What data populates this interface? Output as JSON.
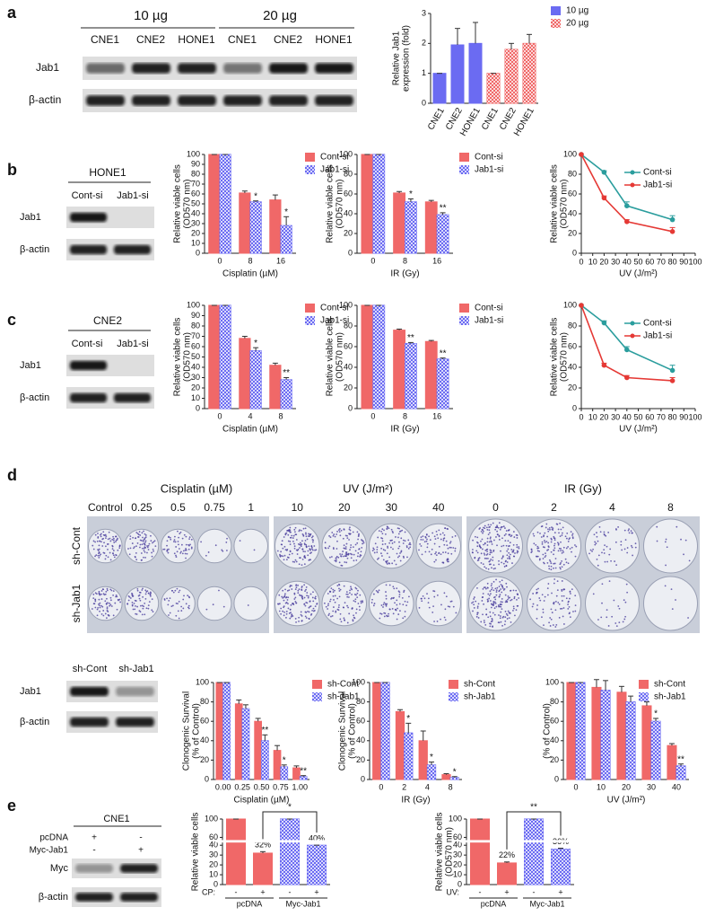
{
  "panel_labels": [
    "a",
    "b",
    "c",
    "d",
    "e"
  ],
  "blot_a": {
    "headers": [
      "10 µg",
      "20 µg"
    ],
    "lanes": [
      "CNE1",
      "CNE2",
      "HONE1",
      "CNE1",
      "CNE2",
      "HONE1"
    ],
    "rows": [
      "Jab1",
      "β-actin"
    ]
  },
  "blot_b": {
    "cell": "HONE1",
    "lanes": [
      "Cont-si",
      "Jab1-si"
    ],
    "rows": [
      "Jab1",
      "β-actin"
    ]
  },
  "blot_c": {
    "cell": "CNE2",
    "lanes": [
      "Cont-si",
      "Jab1-si"
    ],
    "rows": [
      "Jab1",
      "β-actin"
    ]
  },
  "colony": {
    "control": "Control",
    "groups": [
      {
        "name": "Cisplatin (µM)",
        "doses": [
          "0.25",
          "0.5",
          "0.75",
          "1"
        ]
      },
      {
        "name": "UV (J/m²)",
        "doses": [
          "10",
          "20",
          "30",
          "40"
        ]
      },
      {
        "name": "IR (Gy)",
        "doses": [
          "0",
          "2",
          "4",
          "8"
        ]
      }
    ],
    "rows": [
      "sh-Cont",
      "sh-Jab1"
    ]
  },
  "blot_d": {
    "lanes": [
      "sh-Cont",
      "sh-Jab1"
    ],
    "rows": [
      "Jab1",
      "β-actin"
    ]
  },
  "blot_e": {
    "cell": "CNE1",
    "conditions": [
      {
        "name": "pcDNA",
        "signs": [
          "+",
          "-"
        ]
      },
      {
        "name": "Myc-Jab1",
        "signs": [
          "-",
          "+"
        ]
      }
    ],
    "rows": [
      "Myc",
      "β-actin"
    ]
  },
  "chart_data": [
    {
      "type": "bar",
      "categories": [
        "CNE1",
        "CNE2",
        "HONE1",
        "CNE1",
        "CNE2",
        "HONE1"
      ],
      "ylabel": [
        "Relative Jab1",
        "expression (fold)"
      ],
      "series": [
        {
          "name": "10 µg",
          "color": "#6b6bf2",
          "values": [
            1,
            1.95,
            2.0,
            null,
            null,
            null
          ],
          "errors": [
            0,
            0.55,
            0.7,
            null,
            null,
            null
          ]
        },
        {
          "name": "20 µg",
          "color": "#f06868",
          "pattern": "hatch",
          "values": [
            null,
            null,
            null,
            1,
            1.8,
            2.0
          ],
          "errors": [
            null,
            null,
            null,
            0,
            0.2,
            0.3
          ]
        }
      ],
      "ylim": [
        0,
        3
      ],
      "yticks": [
        0,
        1,
        2,
        3
      ]
    },
    {
      "type": "bar",
      "categories": [
        "0",
        "8",
        "16"
      ],
      "xlabel": "Cisplatin (µM)",
      "ylabel": [
        "Relative viable cells",
        "(OD570 nm)"
      ],
      "series": [
        {
          "name": "Cont-si",
          "color": "#f06868",
          "values": [
            100,
            61,
            54
          ],
          "errors": [
            0,
            2,
            5
          ]
        },
        {
          "name": "Jab1-si",
          "color": "#6b6bf2",
          "pattern": "hatch",
          "values": [
            100,
            52,
            28
          ],
          "errors": [
            0,
            1,
            9
          ],
          "significance": [
            null,
            "*",
            "*"
          ]
        }
      ],
      "ylim": [
        0,
        100
      ],
      "yticks": [
        0,
        10,
        20,
        30,
        40,
        50,
        60,
        70,
        80,
        90,
        100
      ]
    },
    {
      "type": "bar",
      "categories": [
        "0",
        "8",
        "16"
      ],
      "xlabel": "IR (Gy)",
      "ylabel": [
        "Relative viable cells",
        "(OD570 nm)"
      ],
      "series": [
        {
          "name": "Cont-si",
          "color": "#f06868",
          "values": [
            100,
            61,
            52
          ],
          "errors": [
            0,
            1.5,
            1.5
          ]
        },
        {
          "name": "Jab1-si",
          "color": "#6b6bf2",
          "pattern": "hatch",
          "values": [
            100,
            52,
            39
          ],
          "errors": [
            0,
            3,
            2
          ],
          "significance": [
            null,
            "*",
            "**"
          ]
        }
      ],
      "ylim": [
        0,
        100
      ],
      "yticks": [
        0,
        20,
        40,
        60,
        80,
        100
      ]
    },
    {
      "type": "line",
      "x": [
        0,
        20,
        40,
        80
      ],
      "xlabel": "UV (J/m²)",
      "ylabel": [
        "Relative viable cells",
        "(OD570 nm)"
      ],
      "series": [
        {
          "name": "Cont-si",
          "color": "#2a9d9d",
          "values": [
            100,
            82,
            48,
            34
          ],
          "errors": [
            0,
            1.5,
            4,
            4
          ]
        },
        {
          "name": "Jab1-si",
          "color": "#e53935",
          "values": [
            100,
            56,
            32,
            22
          ],
          "errors": [
            0,
            2,
            2,
            4
          ]
        }
      ],
      "xlim": [
        0,
        100
      ],
      "xticks": [
        0,
        10,
        20,
        30,
        40,
        50,
        60,
        70,
        80,
        90,
        100
      ],
      "ylim": [
        0,
        100
      ],
      "yticks": [
        0,
        20,
        40,
        60,
        80,
        100
      ]
    },
    {
      "type": "bar",
      "categories": [
        "0",
        "4",
        "8"
      ],
      "xlabel": "Cisplatin (µM)",
      "ylabel": [
        "Relative viable cells",
        "(OD570 nm)"
      ],
      "series": [
        {
          "name": "Cont-si",
          "color": "#f06868",
          "values": [
            100,
            68,
            42
          ],
          "errors": [
            0,
            2,
            2
          ]
        },
        {
          "name": "Jab1-si",
          "color": "#6b6bf2",
          "pattern": "hatch",
          "values": [
            100,
            56,
            28
          ],
          "errors": [
            0,
            3,
            2
          ],
          "significance": [
            null,
            "*",
            "**"
          ]
        }
      ],
      "ylim": [
        0,
        100
      ],
      "yticks": [
        0,
        10,
        20,
        30,
        40,
        50,
        60,
        70,
        80,
        90,
        100
      ]
    },
    {
      "type": "bar",
      "categories": [
        "0",
        "8",
        "16"
      ],
      "xlabel": "IR (Gy)",
      "ylabel": [
        "Relative viable cells",
        "(OD570 nm)"
      ],
      "series": [
        {
          "name": "Cont-si",
          "color": "#f06868",
          "values": [
            100,
            76,
            65
          ],
          "errors": [
            0,
            1,
            1
          ]
        },
        {
          "name": "Jab1-si",
          "color": "#6b6bf2",
          "pattern": "hatch",
          "values": [
            100,
            63,
            48
          ],
          "errors": [
            0,
            1,
            1
          ],
          "significance": [
            null,
            "**",
            "**"
          ]
        }
      ],
      "ylim": [
        0,
        100
      ],
      "yticks": [
        0,
        20,
        40,
        60,
        80,
        100
      ]
    },
    {
      "type": "line",
      "x": [
        0,
        20,
        40,
        80
      ],
      "xlabel": "UV (J/m²)",
      "ylabel": [
        "Relative viable cells",
        "(OD570 nm)"
      ],
      "series": [
        {
          "name": "Cont-si",
          "color": "#2a9d9d",
          "values": [
            100,
            83,
            57,
            37
          ],
          "errors": [
            0,
            2,
            3,
            5
          ]
        },
        {
          "name": "Jab1-si",
          "color": "#e53935",
          "values": [
            100,
            42,
            30,
            27
          ],
          "errors": [
            0,
            2,
            2,
            3
          ]
        }
      ],
      "xlim": [
        0,
        100
      ],
      "xticks": [
        0,
        10,
        20,
        30,
        40,
        50,
        60,
        70,
        80,
        90,
        100
      ],
      "ylim": [
        0,
        100
      ],
      "yticks": [
        0,
        20,
        40,
        60,
        80,
        100
      ]
    },
    {
      "type": "bar",
      "categories": [
        "0.00",
        "0.25",
        "0.50",
        "0.75",
        "1.00"
      ],
      "xlabel": "Cisplatin (µM)",
      "ylabel": [
        "Clonogenic Survival",
        "(% of Control)"
      ],
      "series": [
        {
          "name": "sh-Cont",
          "color": "#f06868",
          "values": [
            100,
            78,
            60,
            30,
            12
          ],
          "errors": [
            0,
            4,
            3,
            5,
            2
          ]
        },
        {
          "name": "sh-Jab1",
          "color": "#6b6bf2",
          "pattern": "hatch",
          "values": [
            100,
            73,
            40,
            13,
            3
          ],
          "errors": [
            0,
            4,
            6,
            2,
            1
          ],
          "significance": [
            null,
            null,
            "**",
            "*",
            "**"
          ]
        }
      ],
      "ylim": [
        0,
        100
      ],
      "yticks": [
        0,
        20,
        40,
        60,
        80,
        100
      ]
    },
    {
      "type": "bar",
      "categories": [
        "0",
        "2",
        "4",
        "8"
      ],
      "xlabel": "IR (Gy)",
      "ylabel": [
        "Clonogenic Survival",
        "(% of Control)"
      ],
      "series": [
        {
          "name": "sh-Cont",
          "color": "#f06868",
          "values": [
            100,
            70,
            40,
            5
          ],
          "errors": [
            0,
            2,
            10,
            1
          ]
        },
        {
          "name": "sh-Jab1",
          "color": "#6b6bf2",
          "pattern": "hatch",
          "values": [
            100,
            48,
            15,
            2
          ],
          "errors": [
            0,
            10,
            3,
            1
          ],
          "significance": [
            null,
            "*",
            "*",
            "*"
          ]
        }
      ],
      "ylim": [
        0,
        100
      ],
      "yticks": [
        0,
        20,
        40,
        60,
        80,
        100
      ]
    },
    {
      "type": "bar",
      "categories": [
        "0",
        "10",
        "20",
        "30",
        "40"
      ],
      "xlabel": "UV (J/m²)",
      "ylabel": [
        "(% of Control)"
      ],
      "series": [
        {
          "name": "sh-Cont",
          "color": "#f06868",
          "values": [
            100,
            95,
            90,
            76,
            35
          ],
          "errors": [
            0,
            8,
            6,
            4,
            2
          ]
        },
        {
          "name": "sh-Jab1",
          "color": "#6b6bf2",
          "pattern": "hatch",
          "values": [
            100,
            92,
            80,
            60,
            14
          ],
          "errors": [
            0,
            10,
            6,
            3,
            2
          ],
          "significance": [
            null,
            null,
            null,
            "*",
            "**"
          ]
        }
      ],
      "ylim": [
        0,
        100
      ],
      "yticks": [
        0,
        20,
        40,
        60,
        80,
        100
      ]
    },
    {
      "type": "bar",
      "categories": [
        "-",
        "+",
        "-",
        "+"
      ],
      "groups": [
        "pcDNA",
        "Myc-Jab1"
      ],
      "treatment": "CP:",
      "comparison": "*",
      "ylabel": [
        "Relative viable cells"
      ],
      "series": [
        {
          "color": "#f06868",
          "values": [
            100,
            32,
            null,
            null
          ],
          "errors": [
            0,
            1.5,
            null,
            null
          ],
          "value_labels": [
            null,
            "32%",
            null,
            null
          ]
        },
        {
          "color": "#6b6bf2",
          "pattern": "hatch",
          "values": [
            null,
            null,
            100,
            40
          ],
          "errors": [
            null,
            null,
            0,
            3
          ],
          "value_labels": [
            null,
            null,
            null,
            "40%"
          ]
        }
      ],
      "ylim": [
        0,
        100
      ],
      "yticks": [
        0,
        10,
        20,
        30,
        40,
        60,
        100
      ],
      "ybreak": [
        40,
        60
      ]
    },
    {
      "type": "bar",
      "categories": [
        "-",
        "+",
        "-",
        "+"
      ],
      "groups": [
        "pcDNA",
        "Myc-Jab1"
      ],
      "treatment": "UV:",
      "comparison": "**",
      "ylabel": [
        "Relative viable cells",
        "(OD570 nm)"
      ],
      "series": [
        {
          "color": "#f06868",
          "values": [
            100,
            22,
            null,
            null
          ],
          "errors": [
            0,
            1,
            null,
            null
          ],
          "value_labels": [
            null,
            "22%",
            null,
            null
          ]
        },
        {
          "color": "#6b6bf2",
          "pattern": "hatch",
          "values": [
            null,
            null,
            100,
            36
          ],
          "errors": [
            null,
            null,
            0,
            1
          ],
          "value_labels": [
            null,
            null,
            null,
            "36%"
          ]
        }
      ],
      "ylim": [
        0,
        100
      ],
      "yticks": [
        0,
        10,
        20,
        30,
        40,
        60,
        100
      ],
      "ybreak": [
        40,
        60
      ]
    }
  ]
}
